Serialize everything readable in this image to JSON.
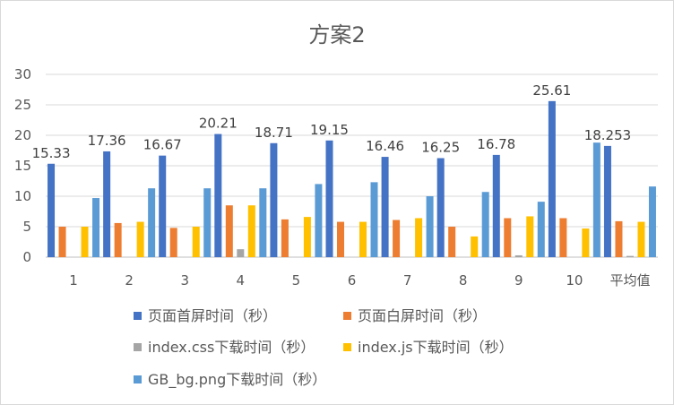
{
  "chart_data": {
    "type": "bar",
    "title": "方案2",
    "categories": [
      "1",
      "2",
      "3",
      "4",
      "5",
      "6",
      "7",
      "8",
      "9",
      "10",
      "平均值"
    ],
    "ylim": [
      0,
      30
    ],
    "yticks": [
      0,
      5,
      10,
      15,
      20,
      25,
      30
    ],
    "grid": true,
    "legend_position": "bottom",
    "series": [
      {
        "name": "页面首屏时间（秒）",
        "color": "#4472C4",
        "values": [
          15.33,
          17.36,
          16.67,
          20.21,
          18.71,
          19.15,
          16.46,
          16.25,
          16.78,
          25.61,
          18.253
        ],
        "data_labels": [
          "15.33",
          "17.36",
          "16.67",
          "20.21",
          "18.71",
          "19.15",
          "16.46",
          "16.25",
          "16.78",
          "25.61",
          "18.253"
        ]
      },
      {
        "name": "页面白屏时间（秒）",
        "color": "#ED7D31",
        "values": [
          5.0,
          5.6,
          4.8,
          8.5,
          6.2,
          5.8,
          6.1,
          5.0,
          6.4,
          6.4,
          5.9
        ]
      },
      {
        "name": "index.css下载时间（秒）",
        "color": "#A5A5A5",
        "values": [
          0,
          0,
          0,
          1.3,
          0,
          0,
          0,
          0,
          0.3,
          0,
          0.2
        ]
      },
      {
        "name": "index.js下载时间（秒）",
        "color": "#FFC000",
        "values": [
          5.0,
          5.8,
          5.0,
          8.5,
          6.6,
          5.8,
          6.4,
          3.4,
          6.7,
          4.7,
          5.8
        ]
      },
      {
        "name": "GB_bg.png下载时间（秒）",
        "color": "#5B9BD5",
        "values": [
          9.7,
          11.3,
          11.3,
          11.3,
          12.0,
          12.3,
          10.0,
          10.7,
          9.1,
          18.8,
          11.6
        ]
      }
    ]
  }
}
